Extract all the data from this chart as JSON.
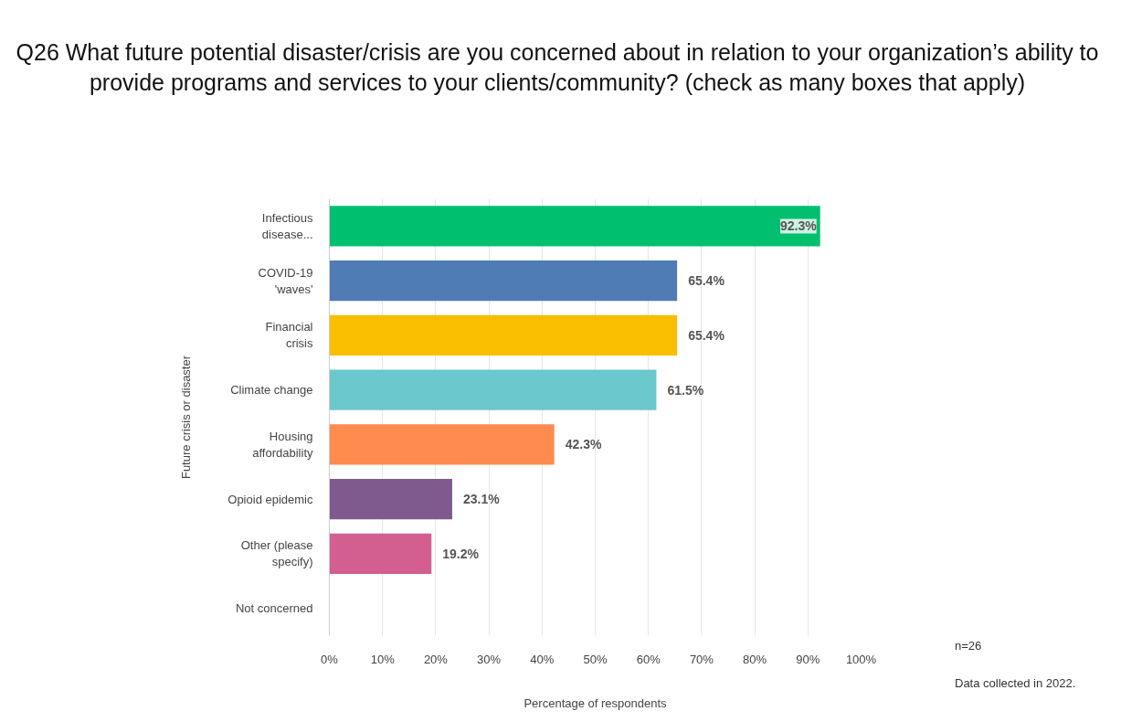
{
  "chart_data": {
    "type": "bar",
    "orientation": "horizontal",
    "title": "Q26 What future potential disaster/crisis are you concerned about in relation to your organization’s ability to provide programs and services to your clients/community? (check as many boxes that apply)",
    "xlabel": "Percentage of respondents",
    "ylabel": "Future crisis or disaster",
    "categories": [
      "Infectious disease...",
      "COVID-19 'waves'",
      "Financial crisis",
      "Climate change",
      "Housing affordability",
      "Opioid epidemic",
      "Other (please specify)",
      "Not concerned"
    ],
    "values": [
      92.3,
      65.4,
      65.4,
      61.5,
      42.3,
      23.1,
      19.2,
      0
    ],
    "colors": [
      "#00bf6f",
      "#507cb6",
      "#f9be00",
      "#6bc8cd",
      "#ff8b4f",
      "#7f5a8e",
      "#d25f90",
      "#999999"
    ],
    "value_labels": [
      "92.3%",
      "65.4%",
      "65.4%",
      "61.5%",
      "42.3%",
      "23.1%",
      "19.2%",
      null
    ],
    "xlim": [
      0,
      100
    ],
    "xticks": [
      {
        "value": 0,
        "label": "0%"
      },
      {
        "value": 10,
        "label": "10%"
      },
      {
        "value": 20,
        "label": "20%"
      },
      {
        "value": 30,
        "label": "30%"
      },
      {
        "value": 40,
        "label": "40%"
      },
      {
        "value": 50,
        "label": "50%"
      },
      {
        "value": 60,
        "label": "60%"
      },
      {
        "value": 70,
        "label": "70%"
      },
      {
        "value": 80,
        "label": "80%"
      },
      {
        "value": 90,
        "label": "90%"
      },
      {
        "value": 100,
        "label": "100%"
      }
    ],
    "grid": "x",
    "annotations": [
      "n=26",
      "Data collected in 2022."
    ]
  }
}
